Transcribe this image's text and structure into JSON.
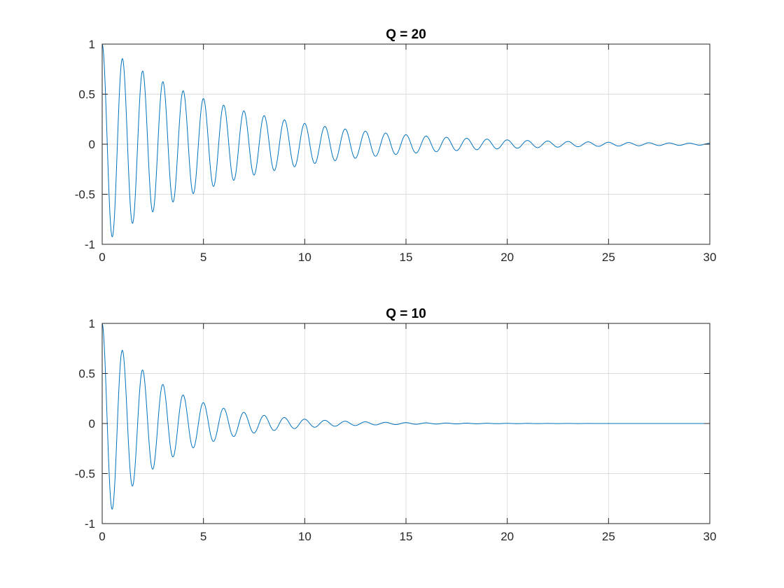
{
  "chart_data": [
    {
      "type": "line",
      "title": "Q = 20",
      "xlabel": "",
      "ylabel": "",
      "xlim": [
        0,
        30
      ],
      "ylim": [
        -1,
        1
      ],
      "x_ticks": [
        0,
        5,
        10,
        15,
        20,
        25,
        30
      ],
      "x_tick_labels": [
        "0",
        "5",
        "10",
        "15",
        "20",
        "25",
        "30"
      ],
      "y_ticks": [
        -1,
        -0.5,
        0,
        0.5,
        1
      ],
      "y_tick_labels": [
        "-1",
        "-0.5",
        "0",
        "0.5",
        "1"
      ],
      "grid": true,
      "series": [
        {
          "color": "#0072BD",
          "function": "exp(-pi*t/Q)*cos(2*pi*t)",
          "Q": 20,
          "frequency": 1,
          "t_range": [
            0,
            30
          ]
        }
      ]
    },
    {
      "type": "line",
      "title": "Q = 10",
      "xlabel": "",
      "ylabel": "",
      "xlim": [
        0,
        30
      ],
      "ylim": [
        -1,
        1
      ],
      "x_ticks": [
        0,
        5,
        10,
        15,
        20,
        25,
        30
      ],
      "x_tick_labels": [
        "0",
        "5",
        "10",
        "15",
        "20",
        "25",
        "30"
      ],
      "y_ticks": [
        -1,
        -0.5,
        0,
        0.5,
        1
      ],
      "y_tick_labels": [
        "-1",
        "-0.5",
        "0",
        "0.5",
        "1"
      ],
      "grid": true,
      "series": [
        {
          "color": "#0072BD",
          "function": "exp(-pi*t/Q)*cos(2*pi*t)",
          "Q": 10,
          "frequency": 1,
          "t_range": [
            0,
            30
          ]
        }
      ]
    }
  ]
}
